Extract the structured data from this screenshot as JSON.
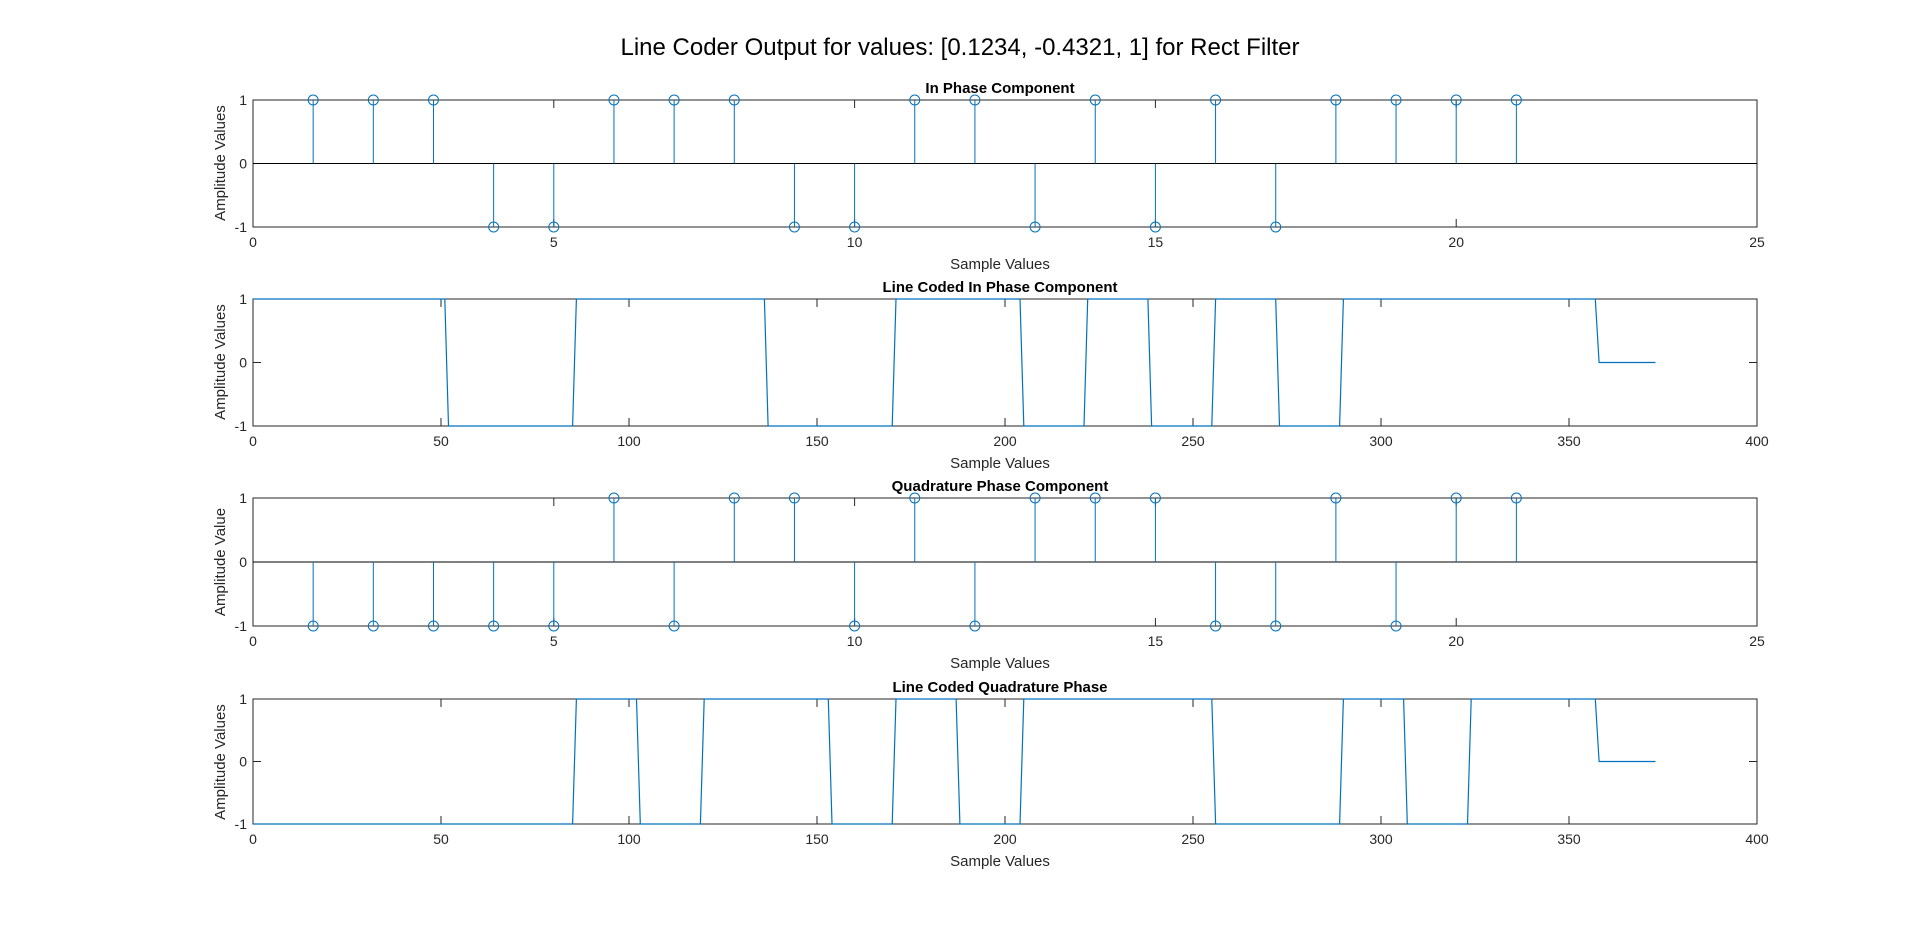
{
  "figure": {
    "suptitle": "Line Coder Output for values: [0.1234, -0.4321, 1] for Rect Filter",
    "line_color": "#0072BD"
  },
  "chart_data": [
    {
      "type": "stem",
      "title": "In Phase Component",
      "xlabel": "Sample Values",
      "ylabel": "Amplitude Values",
      "xlim": [
        0,
        25
      ],
      "ylim": [
        -1,
        1
      ],
      "xticks": [
        0,
        5,
        10,
        15,
        20,
        25
      ],
      "yticks": [
        -1,
        0,
        1
      ],
      "x": [
        1,
        2,
        3,
        4,
        5,
        6,
        7,
        8,
        9,
        10,
        11,
        12,
        13,
        14,
        15,
        16,
        17,
        18,
        19,
        20,
        21
      ],
      "values": [
        1,
        1,
        1,
        -1,
        -1,
        1,
        1,
        1,
        -1,
        -1,
        1,
        1,
        -1,
        1,
        -1,
        1,
        -1,
        1,
        1,
        1,
        1
      ]
    },
    {
      "type": "line",
      "title": "Line Coded In Phase Component",
      "xlabel": "Sample Values",
      "ylabel": "Amplitude Values",
      "xlim": [
        0,
        400
      ],
      "ylim": [
        -1,
        1
      ],
      "xticks": [
        0,
        50,
        100,
        150,
        200,
        250,
        300,
        350,
        400
      ],
      "yticks": [
        -1,
        0,
        1
      ],
      "x": [
        0,
        51,
        52,
        85,
        86,
        136,
        137,
        170,
        171,
        204,
        205,
        221,
        222,
        238,
        239,
        255,
        256,
        272,
        273,
        289,
        290,
        357,
        358,
        373
      ],
      "values": [
        1,
        1,
        -1,
        -1,
        1,
        1,
        -1,
        -1,
        1,
        1,
        -1,
        -1,
        1,
        1,
        -1,
        -1,
        1,
        1,
        -1,
        -1,
        1,
        1,
        0,
        0
      ]
    },
    {
      "type": "stem",
      "title": "Quadrature Phase Component",
      "xlabel": "Sample Values",
      "ylabel": "Amplitude Value",
      "xlim": [
        0,
        25
      ],
      "ylim": [
        -1,
        1
      ],
      "xticks": [
        0,
        5,
        10,
        15,
        20,
        25
      ],
      "yticks": [
        -1,
        0,
        1
      ],
      "x": [
        1,
        2,
        3,
        4,
        5,
        6,
        7,
        8,
        9,
        10,
        11,
        12,
        13,
        14,
        15,
        16,
        17,
        18,
        19,
        20,
        21
      ],
      "values": [
        -1,
        -1,
        -1,
        -1,
        -1,
        1,
        -1,
        1,
        1,
        -1,
        1,
        -1,
        1,
        1,
        1,
        -1,
        -1,
        1,
        -1,
        1,
        1
      ]
    },
    {
      "type": "line",
      "title": "Line Coded Quadrature Phase",
      "xlabel": "Sample Values",
      "ylabel": "Amplitude Values",
      "xlim": [
        0,
        400
      ],
      "ylim": [
        -1,
        1
      ],
      "xticks": [
        0,
        50,
        100,
        150,
        200,
        250,
        300,
        350,
        400
      ],
      "yticks": [
        -1,
        0,
        1
      ],
      "x": [
        0,
        85,
        86,
        102,
        103,
        119,
        120,
        153,
        154,
        170,
        171,
        187,
        188,
        204,
        205,
        255,
        256,
        289,
        290,
        306,
        307,
        323,
        324,
        357,
        358,
        373
      ],
      "values": [
        -1,
        -1,
        1,
        1,
        -1,
        -1,
        1,
        1,
        -1,
        -1,
        1,
        1,
        -1,
        -1,
        1,
        1,
        -1,
        -1,
        1,
        1,
        -1,
        -1,
        1,
        1,
        0,
        0
      ]
    }
  ]
}
